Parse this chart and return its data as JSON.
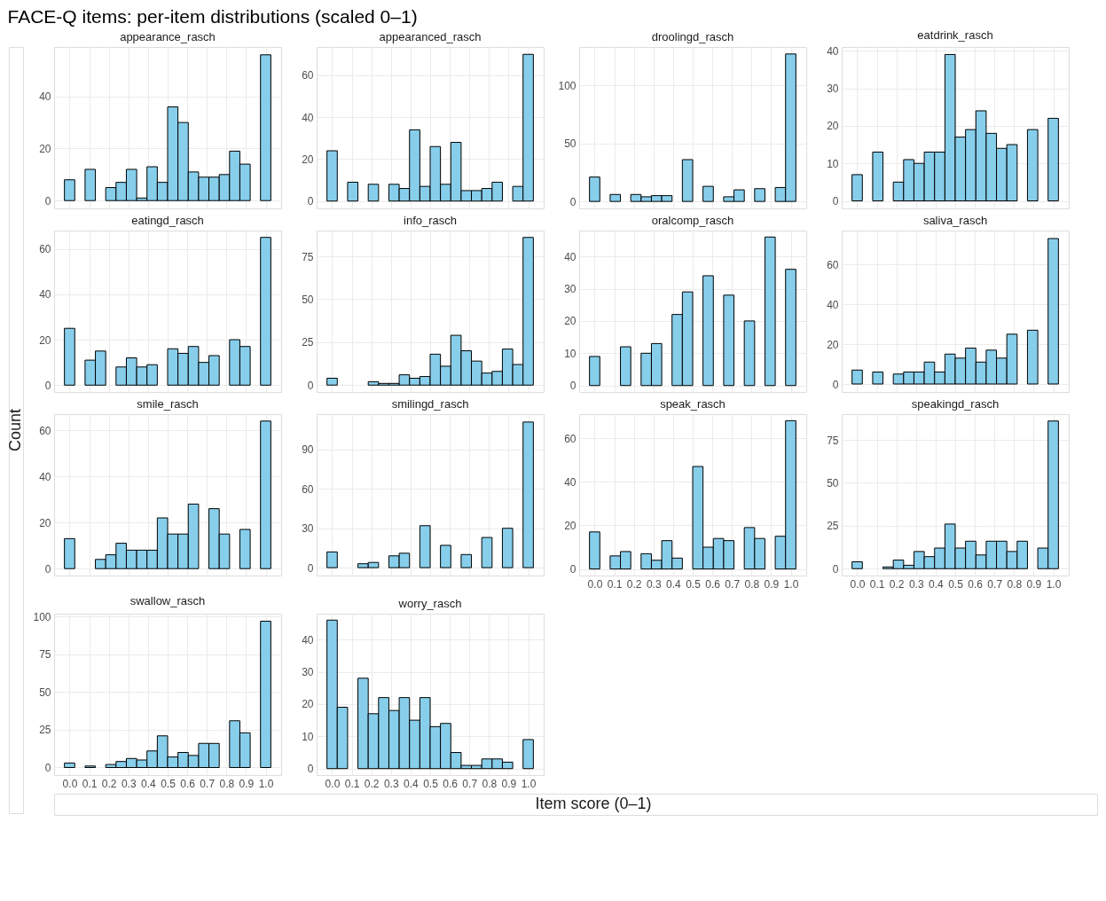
{
  "chart_data": [
    {
      "type": "histogram",
      "title": "appearance_rasch",
      "annotations": [
        "FACE-Q items: per-item distributions (scaled 0–1)"
      ],
      "bins": [
        -0.0263,
        0.0263,
        0.0789,
        0.1316,
        0.1842,
        0.2368,
        0.2895,
        0.3421,
        0.3947,
        0.4474,
        0.5,
        0.5526,
        0.6053,
        0.6579,
        0.7105,
        0.7632,
        0.8158,
        0.8684,
        0.9211,
        0.9737,
        1.0263
      ],
      "values": [
        8,
        0,
        12,
        0,
        5,
        7,
        12,
        1,
        13,
        7,
        36,
        30,
        11,
        9,
        9,
        10,
        19,
        14,
        0,
        56
      ],
      "color": "#87ceeb",
      "xlim": [
        -0.079,
        1.079
      ],
      "ylim": [
        -3,
        59
      ],
      "xticks": [
        0,
        0.1,
        0.2,
        0.3,
        0.4,
        0.5,
        0.6,
        0.7,
        0.8,
        0.9,
        1
      ],
      "yticks": [
        0,
        20,
        40
      ],
      "grid": true,
      "tick_labels": "y"
    },
    {
      "type": "histogram",
      "title": "appearanced_rasch",
      "bins": [
        -0.0263,
        0.0263,
        0.0789,
        0.1316,
        0.1842,
        0.2368,
        0.2895,
        0.3421,
        0.3947,
        0.4474,
        0.5,
        0.5526,
        0.6053,
        0.6579,
        0.7105,
        0.7632,
        0.8158,
        0.8684,
        0.9211,
        0.9737,
        1.0263
      ],
      "values": [
        24,
        0,
        9,
        0,
        8,
        0,
        8,
        6,
        34,
        7,
        26,
        8,
        28,
        5,
        5,
        6,
        9,
        0,
        7,
        70
      ],
      "color": "#87ceeb",
      "xlim": [
        -0.079,
        1.079
      ],
      "ylim": [
        -3.5,
        73.5
      ],
      "xticks": [
        0,
        0.1,
        0.2,
        0.3,
        0.4,
        0.5,
        0.6,
        0.7,
        0.8,
        0.9,
        1
      ],
      "yticks": [
        0,
        20,
        40,
        60
      ],
      "grid": true,
      "tick_labels": "y"
    },
    {
      "type": "histogram",
      "title": "droolingd_rasch",
      "bins": [
        -0.0263,
        0.0263,
        0.0789,
        0.1316,
        0.1842,
        0.2368,
        0.2895,
        0.3421,
        0.3947,
        0.4474,
        0.5,
        0.5526,
        0.6053,
        0.6579,
        0.7105,
        0.7632,
        0.8158,
        0.8684,
        0.9211,
        0.9737,
        1.0263
      ],
      "values": [
        21,
        0,
        6,
        0,
        6,
        4,
        5,
        5,
        0,
        36,
        0,
        13,
        0,
        4,
        10,
        0,
        11,
        0,
        12,
        127
      ],
      "color": "#87ceeb",
      "xlim": [
        -0.079,
        1.079
      ],
      "ylim": [
        -6,
        133
      ],
      "xticks": [
        0,
        0.1,
        0.2,
        0.3,
        0.4,
        0.5,
        0.6,
        0.7,
        0.8,
        0.9,
        1
      ],
      "yticks": [
        0,
        50,
        100
      ],
      "grid": true,
      "tick_labels": "y"
    },
    {
      "type": "histogram",
      "title": "eatdrink_rasch",
      "bins": [
        -0.0263,
        0.0263,
        0.0789,
        0.1316,
        0.1842,
        0.2368,
        0.2895,
        0.3421,
        0.3947,
        0.4474,
        0.5,
        0.5526,
        0.6053,
        0.6579,
        0.7105,
        0.7632,
        0.8158,
        0.8684,
        0.9211,
        0.9737,
        1.0263
      ],
      "values": [
        7,
        0,
        13,
        0,
        5,
        11,
        10,
        13,
        13,
        39,
        17,
        19,
        24,
        18,
        14,
        15,
        0,
        19,
        0,
        22
      ],
      "color": "#87ceeb",
      "xlim": [
        -0.079,
        1.079
      ],
      "ylim": [
        -2,
        41
      ],
      "xticks": [
        0,
        0.1,
        0.2,
        0.3,
        0.4,
        0.5,
        0.6,
        0.7,
        0.8,
        0.9,
        1
      ],
      "yticks": [
        0,
        10,
        20,
        30,
        40
      ],
      "grid": true,
      "tick_labels": "y"
    },
    {
      "type": "histogram",
      "title": "eatingd_rasch",
      "bins": [
        -0.0263,
        0.0263,
        0.0789,
        0.1316,
        0.1842,
        0.2368,
        0.2895,
        0.3421,
        0.3947,
        0.4474,
        0.5,
        0.5526,
        0.6053,
        0.6579,
        0.7105,
        0.7632,
        0.8158,
        0.8684,
        0.9211,
        0.9737,
        1.0263
      ],
      "values": [
        25,
        0,
        11,
        15,
        0,
        8,
        12,
        8,
        9,
        0,
        16,
        14,
        17,
        10,
        13,
        0,
        20,
        17,
        0,
        65
      ],
      "color": "#87ceeb",
      "xlim": [
        -0.079,
        1.079
      ],
      "ylim": [
        -3,
        68
      ],
      "xticks": [
        0,
        0.1,
        0.2,
        0.3,
        0.4,
        0.5,
        0.6,
        0.7,
        0.8,
        0.9,
        1
      ],
      "yticks": [
        0,
        20,
        40,
        60
      ],
      "grid": true,
      "tick_labels": "y"
    },
    {
      "type": "histogram",
      "title": "info_rasch",
      "bins": [
        -0.0263,
        0.0263,
        0.0789,
        0.1316,
        0.1842,
        0.2368,
        0.2895,
        0.3421,
        0.3947,
        0.4474,
        0.5,
        0.5526,
        0.6053,
        0.6579,
        0.7105,
        0.7632,
        0.8158,
        0.8684,
        0.9211,
        0.9737,
        1.0263
      ],
      "values": [
        4,
        0,
        0,
        0,
        2,
        1,
        1,
        6,
        4,
        5,
        18,
        11,
        29,
        20,
        14,
        7,
        8,
        21,
        12,
        86
      ],
      "color": "#87ceeb",
      "xlim": [
        -0.079,
        1.079
      ],
      "ylim": [
        -4,
        90
      ],
      "xticks": [
        0,
        0.1,
        0.2,
        0.3,
        0.4,
        0.5,
        0.6,
        0.7,
        0.8,
        0.9,
        1
      ],
      "yticks": [
        0,
        25,
        50,
        75
      ],
      "grid": true,
      "tick_labels": "y"
    },
    {
      "type": "histogram",
      "title": "oralcomp_rasch",
      "bins": [
        -0.0263,
        0.0263,
        0.0789,
        0.1316,
        0.1842,
        0.2368,
        0.2895,
        0.3421,
        0.3947,
        0.4474,
        0.5,
        0.5526,
        0.6053,
        0.6579,
        0.7105,
        0.7632,
        0.8158,
        0.8684,
        0.9211,
        0.9737,
        1.0263
      ],
      "values": [
        9,
        0,
        0,
        12,
        0,
        10,
        13,
        0,
        22,
        29,
        0,
        34,
        0,
        28,
        0,
        20,
        0,
        46,
        0,
        36
      ],
      "color": "#87ceeb",
      "xlim": [
        -0.079,
        1.079
      ],
      "ylim": [
        -2,
        48
      ],
      "xticks": [
        0,
        0.1,
        0.2,
        0.3,
        0.4,
        0.5,
        0.6,
        0.7,
        0.8,
        0.9,
        1
      ],
      "yticks": [
        0,
        10,
        20,
        30,
        40
      ],
      "grid": true,
      "tick_labels": "y"
    },
    {
      "type": "histogram",
      "title": "saliva_rasch",
      "bins": [
        -0.0263,
        0.0263,
        0.0789,
        0.1316,
        0.1842,
        0.2368,
        0.2895,
        0.3421,
        0.3947,
        0.4474,
        0.5,
        0.5526,
        0.6053,
        0.6579,
        0.7105,
        0.7632,
        0.8158,
        0.8684,
        0.9211,
        0.9737,
        1.0263
      ],
      "values": [
        7,
        0,
        6,
        0,
        5,
        6,
        6,
        11,
        6,
        15,
        13,
        18,
        11,
        17,
        13,
        25,
        0,
        27,
        0,
        73
      ],
      "color": "#87ceeb",
      "xlim": [
        -0.079,
        1.079
      ],
      "ylim": [
        -4,
        77
      ],
      "xticks": [
        0,
        0.1,
        0.2,
        0.3,
        0.4,
        0.5,
        0.6,
        0.7,
        0.8,
        0.9,
        1
      ],
      "yticks": [
        0,
        20,
        40,
        60
      ],
      "grid": true,
      "tick_labels": "y"
    },
    {
      "type": "histogram",
      "title": "smile_rasch",
      "ylabel": "Count",
      "bins": [
        -0.0263,
        0.0263,
        0.0789,
        0.1316,
        0.1842,
        0.2368,
        0.2895,
        0.3421,
        0.3947,
        0.4474,
        0.5,
        0.5526,
        0.6053,
        0.6579,
        0.7105,
        0.7632,
        0.8158,
        0.8684,
        0.9211,
        0.9737,
        1.0263
      ],
      "values": [
        13,
        0,
        0,
        4,
        6,
        11,
        8,
        8,
        8,
        22,
        15,
        15,
        28,
        0,
        26,
        15,
        0,
        17,
        0,
        64
      ],
      "color": "#87ceeb",
      "xlim": [
        -0.079,
        1.079
      ],
      "ylim": [
        -3,
        67
      ],
      "xticks": [
        0,
        0.1,
        0.2,
        0.3,
        0.4,
        0.5,
        0.6,
        0.7,
        0.8,
        0.9,
        1
      ],
      "yticks": [
        0,
        20,
        40,
        60
      ],
      "grid": true,
      "tick_labels": "y"
    },
    {
      "type": "histogram",
      "title": "smilingd_rasch",
      "bins": [
        -0.0263,
        0.0263,
        0.0789,
        0.1316,
        0.1842,
        0.2368,
        0.2895,
        0.3421,
        0.3947,
        0.4474,
        0.5,
        0.5526,
        0.6053,
        0.6579,
        0.7105,
        0.7632,
        0.8158,
        0.8684,
        0.9211,
        0.9737,
        1.0263
      ],
      "values": [
        12,
        0,
        0,
        3,
        4,
        0,
        9,
        11,
        0,
        32,
        0,
        17,
        0,
        10,
        0,
        23,
        0,
        30,
        0,
        111
      ],
      "color": "#87ceeb",
      "xlim": [
        -0.079,
        1.079
      ],
      "ylim": [
        -6,
        117
      ],
      "xticks": [
        0,
        0.1,
        0.2,
        0.3,
        0.4,
        0.5,
        0.6,
        0.7,
        0.8,
        0.9,
        1
      ],
      "yticks": [
        0,
        30,
        60,
        90
      ],
      "grid": true,
      "tick_labels": "y"
    },
    {
      "type": "histogram",
      "title": "speak_rasch",
      "bins": [
        -0.0263,
        0.0263,
        0.0789,
        0.1316,
        0.1842,
        0.2368,
        0.2895,
        0.3421,
        0.3947,
        0.4474,
        0.5,
        0.5526,
        0.6053,
        0.6579,
        0.7105,
        0.7632,
        0.8158,
        0.8684,
        0.9211,
        0.9737,
        1.0263
      ],
      "values": [
        17,
        0,
        6,
        8,
        0,
        7,
        4,
        13,
        5,
        0,
        47,
        10,
        14,
        13,
        0,
        19,
        14,
        0,
        15,
        68
      ],
      "color": "#87ceeb",
      "xlim": [
        -0.079,
        1.079
      ],
      "ylim": [
        -3,
        71
      ],
      "xticks": [
        {
          "value": 0,
          "label": "0.0"
        },
        {
          "value": 0.1,
          "label": "0.1"
        },
        {
          "value": 0.2,
          "label": "0.2"
        },
        {
          "value": 0.3,
          "label": "0.3"
        },
        {
          "value": 0.4,
          "label": "0.4"
        },
        {
          "value": 0.5,
          "label": "0.5"
        },
        {
          "value": 0.6,
          "label": "0.6"
        },
        {
          "value": 0.7,
          "label": "0.7"
        },
        {
          "value": 0.8,
          "label": "0.8"
        },
        {
          "value": 0.9,
          "label": "0.9"
        },
        {
          "value": 1,
          "label": "1.0"
        }
      ],
      "yticks": [
        0,
        20,
        40,
        60
      ],
      "grid": true
    },
    {
      "type": "histogram",
      "title": "speakingd_rasch",
      "bins": [
        -0.0263,
        0.0263,
        0.0789,
        0.1316,
        0.1842,
        0.2368,
        0.2895,
        0.3421,
        0.3947,
        0.4474,
        0.5,
        0.5526,
        0.6053,
        0.6579,
        0.7105,
        0.7632,
        0.8158,
        0.8684,
        0.9211,
        0.9737,
        1.0263
      ],
      "values": [
        4,
        0,
        0,
        1,
        5,
        2,
        10,
        7,
        12,
        26,
        12,
        16,
        8,
        16,
        16,
        10,
        16,
        0,
        12,
        86
      ],
      "color": "#87ceeb",
      "xlim": [
        -0.079,
        1.079
      ],
      "ylim": [
        -4,
        90
      ],
      "xticks": [
        {
          "value": 0,
          "label": "0.0"
        },
        {
          "value": 0.1,
          "label": "0.1"
        },
        {
          "value": 0.2,
          "label": "0.2"
        },
        {
          "value": 0.3,
          "label": "0.3"
        },
        {
          "value": 0.4,
          "label": "0.4"
        },
        {
          "value": 0.5,
          "label": "0.5"
        },
        {
          "value": 0.6,
          "label": "0.6"
        },
        {
          "value": 0.7,
          "label": "0.7"
        },
        {
          "value": 0.8,
          "label": "0.8"
        },
        {
          "value": 0.9,
          "label": "0.9"
        },
        {
          "value": 1,
          "label": "1.0"
        }
      ],
      "yticks": [
        0,
        25,
        50,
        75
      ],
      "grid": true
    },
    {
      "type": "histogram",
      "title": "swallow_rasch",
      "bins": [
        -0.0263,
        0.0263,
        0.0789,
        0.1316,
        0.1842,
        0.2368,
        0.2895,
        0.3421,
        0.3947,
        0.4474,
        0.5,
        0.5526,
        0.6053,
        0.6579,
        0.7105,
        0.7632,
        0.8158,
        0.8684,
        0.9211,
        0.9737,
        1.0263
      ],
      "values": [
        3,
        0,
        1,
        0,
        2,
        4,
        6,
        5,
        11,
        21,
        7,
        10,
        8,
        16,
        16,
        0,
        31,
        23,
        0,
        97
      ],
      "color": "#87ceeb",
      "xlim": [
        -0.079,
        1.079
      ],
      "ylim": [
        -5,
        102
      ],
      "xticks": [
        {
          "value": 0,
          "label": "0.0"
        },
        {
          "value": 0.1,
          "label": "0.1"
        },
        {
          "value": 0.2,
          "label": "0.2"
        },
        {
          "value": 0.3,
          "label": "0.3"
        },
        {
          "value": 0.4,
          "label": "0.4"
        },
        {
          "value": 0.5,
          "label": "0.5"
        },
        {
          "value": 0.6,
          "label": "0.6"
        },
        {
          "value": 0.7,
          "label": "0.7"
        },
        {
          "value": 0.8,
          "label": "0.8"
        },
        {
          "value": 0.9,
          "label": "0.9"
        },
        {
          "value": 1,
          "label": "1.0"
        }
      ],
      "yticks": [
        0,
        25,
        50,
        75,
        100
      ],
      "grid": true
    },
    {
      "type": "histogram",
      "title": "worry_rasch",
      "xlabel": "Item score (0–1)",
      "bins": [
        -0.0263,
        0.0263,
        0.0789,
        0.1316,
        0.1842,
        0.2368,
        0.2895,
        0.3421,
        0.3947,
        0.4474,
        0.5,
        0.5526,
        0.6053,
        0.6579,
        0.7105,
        0.7632,
        0.8158,
        0.8684,
        0.9211,
        0.9737,
        1.0263
      ],
      "values": [
        46,
        19,
        0,
        28,
        17,
        22,
        18,
        22,
        15,
        22,
        13,
        14,
        5,
        1,
        1,
        3,
        3,
        2,
        0,
        9
      ],
      "color": "#87ceeb",
      "xlim": [
        -0.079,
        1.079
      ],
      "ylim": [
        -2,
        48
      ],
      "xticks": [
        {
          "value": 0,
          "label": "0.0"
        },
        {
          "value": 0.1,
          "label": "0.1"
        },
        {
          "value": 0.2,
          "label": "0.2"
        },
        {
          "value": 0.3,
          "label": "0.3"
        },
        {
          "value": 0.4,
          "label": "0.4"
        },
        {
          "value": 0.5,
          "label": "0.5"
        },
        {
          "value": 0.6,
          "label": "0.6"
        },
        {
          "value": 0.7,
          "label": "0.7"
        },
        {
          "value": 0.8,
          "label": "0.8"
        },
        {
          "value": 0.9,
          "label": "0.9"
        },
        {
          "value": 1,
          "label": "1.0"
        }
      ],
      "yticks": [
        0,
        10,
        20,
        30,
        40
      ],
      "grid": true
    }
  ]
}
